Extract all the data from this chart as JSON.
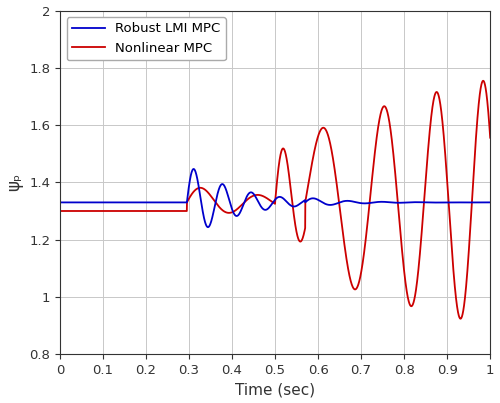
{
  "title": "",
  "xlabel": "Time (sec)",
  "ylabel": "ψₚ",
  "xlim": [
    0,
    1
  ],
  "ylim": [
    0.8,
    2
  ],
  "yticks": [
    0.8,
    1.0,
    1.2,
    1.4,
    1.6,
    1.8,
    2.0
  ],
  "xticks": [
    0,
    0.1,
    0.2,
    0.3,
    0.4,
    0.5,
    0.6,
    0.7,
    0.8,
    0.9,
    1.0
  ],
  "legend_labels": [
    "Robust LMI MPC",
    "Nonlinear MPC"
  ],
  "blue_color": "#0000cc",
  "red_color": "#cc0000",
  "background_color": "#ffffff",
  "grid_color": "#c8c8c8",
  "steady_state": 1.33,
  "figsize": [
    5.0,
    4.03
  ],
  "dpi": 100
}
